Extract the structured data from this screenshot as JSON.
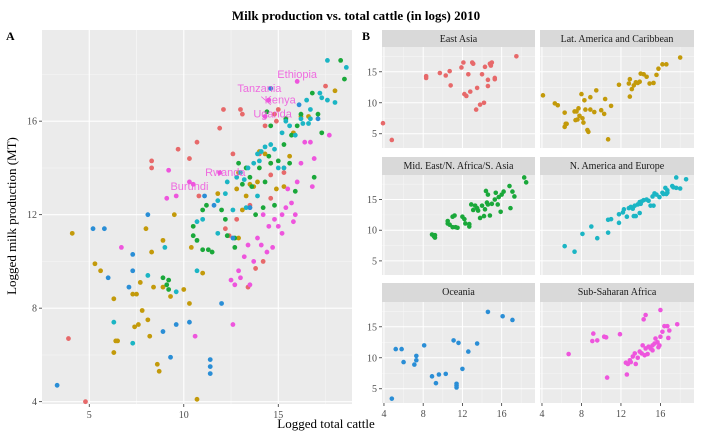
{
  "chart_data": [
    {
      "type": "scatter",
      "panel": "A",
      "title": "Milk production vs. total cattle (in logs) 2010",
      "xlabel": "Logged total cattle",
      "ylabel": "Logged milk production (MT)",
      "xlim": [
        2.5,
        18.9
      ],
      "ylim": [
        3.9,
        19.9
      ],
      "xticks": [
        5,
        10,
        15
      ],
      "yticks": [
        4,
        8,
        12,
        16
      ],
      "grid": true,
      "annotations": [
        {
          "text": "Ethiopia",
          "x": 16.0,
          "y": 17.7
        },
        {
          "text": "Tanzania",
          "x": 14.6,
          "y": 16.8
        },
        {
          "text": "Kenya",
          "x": 15.0,
          "y": 16.8
        },
        {
          "text": "Uganda",
          "x": 14.7,
          "y": 16.2
        },
        {
          "text": "Rwanda",
          "x": 12.1,
          "y": 13.8
        },
        {
          "text": "Burundi",
          "x": 10.6,
          "y": 13.2
        }
      ]
    },
    {
      "type": "scatter",
      "panel": "B",
      "facet": "region",
      "xlim": [
        3.8,
        19.4
      ],
      "ylim": [
        2.7,
        19.0
      ],
      "xticks": [
        4,
        8,
        12,
        16
      ],
      "yticks": [
        5,
        10,
        15
      ],
      "grid": true,
      "series": [
        {
          "name": "East Asia",
          "color": "#e7696a",
          "points": [
            [
              4.8,
              4.0
            ],
            [
              10.8,
              12.8
            ],
            [
              12.2,
              11.4
            ],
            [
              12.4,
              11.1
            ],
            [
              13.4,
              8.9
            ],
            [
              13.5,
              12.4
            ],
            [
              13.8,
              9.7
            ],
            [
              14.0,
              14.6
            ],
            [
              14.2,
              10.0
            ],
            [
              14.3,
              15.8
            ],
            [
              14.6,
              13.7
            ],
            [
              14.6,
              12.7
            ],
            [
              15.3,
              13.8
            ],
            [
              15.3,
              14.0
            ],
            [
              17.5,
              17.5
            ],
            [
              3.9,
              6.7
            ],
            [
              12.8,
              11.8
            ],
            [
              15.0,
              16.5
            ],
            [
              14.8,
              16.3
            ],
            [
              13.0,
              16.5
            ],
            [
              10.7,
              15.1
            ],
            [
              9.7,
              14.8
            ],
            [
              10.3,
              14.4
            ],
            [
              12.6,
              14.6
            ],
            [
              11.9,
              15.7
            ],
            [
              8.3,
              14.3
            ],
            [
              8.3,
              14.0
            ],
            [
              12.1,
              16.5
            ],
            [
              13.1,
              16.3
            ],
            [
              14.9,
              16.0
            ]
          ]
        },
        {
          "name": "Lat. America and Caribbean",
          "color": "#c39a0a",
          "points": [
            [
              6.3,
              6.1
            ],
            [
              6.4,
              6.6
            ],
            [
              7.5,
              8.6
            ],
            [
              7.4,
              7.2
            ],
            [
              7.6,
              7.3
            ],
            [
              7.8,
              7.9
            ],
            [
              8.1,
              7.5
            ],
            [
              8.2,
              6.8
            ],
            [
              8.6,
              5.6
            ],
            [
              8.7,
              5.3
            ],
            [
              8.4,
              8.9
            ],
            [
              8.9,
              8.9
            ],
            [
              9.3,
              8.5
            ],
            [
              10.0,
              8.8
            ],
            [
              10.3,
              8.2
            ],
            [
              10.4,
              10.6
            ],
            [
              10.7,
              4.1
            ],
            [
              11.0,
              9.5
            ],
            [
              11.8,
              12.9
            ],
            [
              12.8,
              13.1
            ],
            [
              12.9,
              13.8
            ],
            [
              12.9,
              11.0
            ],
            [
              13.1,
              12.2
            ],
            [
              13.3,
              12.8
            ],
            [
              13.5,
              13.3
            ],
            [
              13.7,
              13.2
            ],
            [
              13.9,
              13.4
            ],
            [
              14.0,
              14.7
            ],
            [
              14.3,
              14.6
            ],
            [
              14.6,
              14.2
            ],
            [
              14.9,
              13.1
            ],
            [
              15.3,
              13.2
            ],
            [
              15.6,
              14.5
            ],
            [
              15.8,
              15.5
            ],
            [
              16.2,
              16.2
            ],
            [
              16.6,
              16.2
            ],
            [
              18.0,
              17.3
            ],
            [
              4.1,
              11.2
            ],
            [
              5.3,
              9.9
            ],
            [
              5.6,
              9.6
            ],
            [
              6.3,
              8.4
            ],
            [
              9.5,
              12.0
            ],
            [
              7.7,
              9.1
            ],
            [
              8.0,
              11.4
            ],
            [
              8.3,
              10.4
            ],
            [
              8.9,
              10.9
            ],
            [
              6.5,
              6.6
            ],
            [
              7.3,
              8.6
            ]
          ]
        },
        {
          "name": "Mid. East/N. Africa/S. Asia",
          "color": "#1aa83a",
          "points": [
            [
              9.1,
              9.0
            ],
            [
              9.2,
              8.8
            ],
            [
              10.5,
              11.1
            ],
            [
              10.7,
              10.9
            ],
            [
              11.0,
              12.2
            ],
            [
              11.2,
              12.4
            ],
            [
              11.5,
              10.4
            ],
            [
              12.2,
              11.8
            ],
            [
              12.7,
              10.6
            ],
            [
              12.7,
              11.0
            ],
            [
              12.9,
              14.2
            ],
            [
              13.1,
              13.3
            ],
            [
              13.3,
              14.0
            ],
            [
              13.5,
              13.6
            ],
            [
              13.6,
              13.2
            ],
            [
              13.8,
              12.0
            ],
            [
              14.0,
              14.0
            ],
            [
              14.2,
              12.3
            ],
            [
              14.3,
              13.4
            ],
            [
              14.5,
              14.5
            ],
            [
              14.6,
              14.2
            ],
            [
              14.8,
              12.4
            ],
            [
              15.0,
              14.3
            ],
            [
              15.3,
              15.0
            ],
            [
              15.6,
              14.2
            ],
            [
              15.7,
              15.4
            ],
            [
              15.9,
              13.0
            ],
            [
              16.0,
              15.8
            ],
            [
              16.2,
              16.3
            ],
            [
              16.9,
              13.6
            ],
            [
              17.1,
              16.3
            ],
            [
              17.3,
              15.5
            ],
            [
              18.5,
              17.8
            ],
            [
              8.9,
              9.3
            ],
            [
              9.2,
              9.2
            ],
            [
              10.5,
              11.5
            ],
            [
              11.0,
              10.5
            ],
            [
              11.3,
              10.5
            ],
            [
              12.0,
              12.2
            ],
            [
              12.3,
              11.1
            ],
            [
              14.4,
              16.4
            ],
            [
              15.4,
              16.1
            ],
            [
              16.8,
              17.2
            ],
            [
              18.3,
              18.6
            ],
            [
              14.6,
              15.8
            ]
          ]
        },
        {
          "name": "N. America and Europe",
          "color": "#1bb5c4",
          "points": [
            [
              6.3,
              7.4
            ],
            [
              8.1,
              9.4
            ],
            [
              9.0,
              10.6
            ],
            [
              10.7,
              11.7
            ],
            [
              11.0,
              11.8
            ],
            [
              11.8,
              12.6
            ],
            [
              12.2,
              12.9
            ],
            [
              12.3,
              13.4
            ],
            [
              12.8,
              13.6
            ],
            [
              13.0,
              13.8
            ],
            [
              13.2,
              13.5
            ],
            [
              13.4,
              14.0
            ],
            [
              13.7,
              14.2
            ],
            [
              13.9,
              14.6
            ],
            [
              14.3,
              14.9
            ],
            [
              14.6,
              15.0
            ],
            [
              14.8,
              14.8
            ],
            [
              15.2,
              15.5
            ],
            [
              15.4,
              16.0
            ],
            [
              15.6,
              15.8
            ],
            [
              15.9,
              15.4
            ],
            [
              16.2,
              16.1
            ],
            [
              16.3,
              15.9
            ],
            [
              16.7,
              16.1
            ],
            [
              17.3,
              17.0
            ],
            [
              17.6,
              16.9
            ],
            [
              18.6,
              18.3
            ],
            [
              17.2,
              17.2
            ],
            [
              16.7,
              16.5
            ],
            [
              14.1,
              14.7
            ],
            [
              7.3,
              6.5
            ],
            [
              10.7,
              9.6
            ],
            [
              9.6,
              8.7
            ],
            [
              11.8,
              11.2
            ],
            [
              12.6,
              12.2
            ],
            [
              13.3,
              12.3
            ],
            [
              13.5,
              12.3
            ],
            [
              14.0,
              14.3
            ],
            [
              13.9,
              12.8
            ],
            [
              15.3,
              14.0
            ],
            [
              15.0,
              14.0
            ],
            [
              16.6,
              15.9
            ],
            [
              16.5,
              16.9
            ],
            [
              18.0,
              16.8
            ],
            [
              17.6,
              18.6
            ]
          ]
        },
        {
          "name": "Oceania",
          "color": "#2a8ed6",
          "points": [
            [
              4.8,
              3.4
            ],
            [
              8.9,
              7.0
            ],
            [
              9.3,
              5.9
            ],
            [
              9.6,
              7.3
            ],
            [
              10.3,
              7.4
            ],
            [
              11.4,
              5.5
            ],
            [
              11.4,
              5.8
            ],
            [
              11.4,
              5.2
            ],
            [
              12.0,
              8.2
            ],
            [
              12.6,
              11.0
            ],
            [
              16.1,
              16.7
            ],
            [
              17.1,
              16.1
            ],
            [
              3.3,
              4.7
            ],
            [
              5.2,
              11.4
            ],
            [
              5.8,
              11.4
            ],
            [
              6.0,
              9.3
            ],
            [
              7.1,
              8.9
            ],
            [
              7.3,
              9.6
            ],
            [
              7.3,
              10.3
            ],
            [
              8.1,
              12.0
            ],
            [
              11.1,
              12.8
            ],
            [
              11.6,
              12.4
            ],
            [
              14.6,
              17.4
            ],
            [
              13.5,
              12.3
            ]
          ]
        },
        {
          "name": "Sub-Saharan Africa",
          "color": "#ee55dd",
          "points": [
            [
              10.6,
              6.8
            ],
            [
              12.6,
              7.3
            ],
            [
              12.5,
              9.2
            ],
            [
              12.7,
              9.0
            ],
            [
              12.9,
              9.6
            ],
            [
              13.0,
              9.3
            ],
            [
              13.2,
              10.2
            ],
            [
              13.4,
              10.7
            ],
            [
              13.5,
              9.0
            ],
            [
              13.7,
              10.0
            ],
            [
              13.9,
              11.0
            ],
            [
              14.1,
              10.7
            ],
            [
              14.2,
              12.0
            ],
            [
              14.4,
              10.4
            ],
            [
              14.5,
              11.5
            ],
            [
              14.7,
              10.6
            ],
            [
              14.8,
              11.8
            ],
            [
              15.0,
              11.5
            ],
            [
              15.2,
              12.0
            ],
            [
              15.4,
              12.3
            ],
            [
              15.5,
              13.1
            ],
            [
              15.7,
              12.5
            ],
            [
              15.9,
              12.0
            ],
            [
              16.0,
              13.4
            ],
            [
              16.2,
              14.2
            ],
            [
              16.4,
              15.1
            ],
            [
              16.7,
              15.1
            ],
            [
              16.8,
              13.2
            ],
            [
              16.9,
              14.4
            ],
            [
              17.7,
              15.4
            ],
            [
              15.2,
              11.2
            ],
            [
              15.8,
              11.7
            ],
            [
              16.0,
              17.7
            ],
            [
              14.5,
              16.9
            ],
            [
              14.3,
              16.2
            ],
            [
              11.9,
              13.8
            ],
            [
              10.5,
              13.3
            ],
            [
              6.7,
              10.6
            ],
            [
              10.3,
              13.4
            ],
            [
              9.1,
              12.7
            ],
            [
              9.6,
              12.8
            ],
            [
              9.2,
              13.9
            ]
          ]
        }
      ]
    }
  ],
  "labels": {
    "title": "Milk production vs. total cattle (in logs) 2010",
    "panel_a": "A",
    "panel_b": "B",
    "xlabel": "Logged total cattle",
    "ylabel": "Logged milk production (MT)",
    "a_xticks": [
      "5",
      "10",
      "15"
    ],
    "a_yticks": [
      "4",
      "8",
      "12",
      "16"
    ],
    "b_xticks": [
      "4",
      "8",
      "12",
      "16"
    ],
    "b_yticks": [
      "5",
      "10",
      "15"
    ],
    "facets": [
      "East Asia",
      "Lat. America and Caribbean",
      "Mid. East/N. Africa/S. Asia",
      "N. America and Europe",
      "Oceania",
      "Sub-Saharan Africa"
    ],
    "annotations": [
      "Ethiopia",
      "Tanzania",
      "Kenya",
      "Uganda",
      "Rwanda",
      "Burundi"
    ]
  }
}
